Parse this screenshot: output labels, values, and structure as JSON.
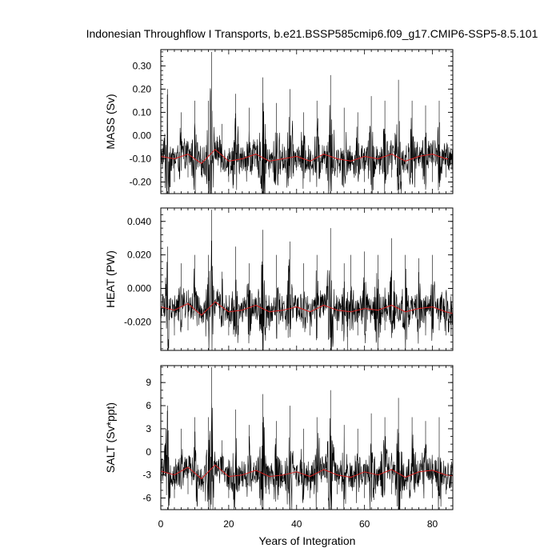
{
  "title": "Indonesian Throughflow I Transports, b.e21.BSSP585cmip6.f09_g17.CMIP6-SSP5-8.5.101",
  "xlabel": "Years of Integration",
  "colors": {
    "series": "#000000",
    "smooth": "#d62020",
    "axes": "#000000",
    "background": "#ffffff"
  },
  "chart_data": [
    {
      "type": "line",
      "panel": "mass",
      "ylabel": "MASS (Sv)",
      "xlim": [
        0,
        86
      ],
      "ylim": [
        -0.25,
        0.37
      ],
      "xticks": [
        0,
        20,
        40,
        60,
        80
      ],
      "xticklabels": [
        "0",
        "20",
        "40",
        "60",
        "80"
      ],
      "yticks": [
        -0.2,
        -0.1,
        0.0,
        0.1,
        0.2,
        0.3
      ],
      "yticklabels": [
        "-0.20",
        "-0.10",
        "0.00",
        "0.10",
        "0.20",
        "0.30"
      ],
      "series": [
        {
          "style": "monthly",
          "color": "#000000",
          "x": [
            0,
            2,
            4,
            6,
            8,
            10,
            12,
            14,
            15,
            16,
            18,
            20,
            22,
            24,
            26,
            28,
            30,
            32,
            34,
            36,
            38,
            40,
            42,
            44,
            46,
            48,
            50,
            52,
            54,
            56,
            58,
            60,
            62,
            64,
            66,
            68,
            70,
            72,
            74,
            76,
            78,
            80,
            82,
            84,
            86
          ],
          "y": [
            -0.1,
            0.2,
            -0.2,
            0.1,
            -0.18,
            0.15,
            -0.15,
            0.15,
            0.36,
            -0.1,
            0.05,
            -0.2,
            0.18,
            -0.15,
            0.12,
            -0.1,
            0.25,
            -0.18,
            0.14,
            -0.12,
            0.2,
            -0.15,
            0.1,
            -0.2,
            0.15,
            -0.1,
            0.26,
            -0.18,
            0.12,
            -0.15,
            0.1,
            -0.2,
            0.17,
            -0.1,
            0.15,
            -0.18,
            0.24,
            -0.15,
            0.15,
            -0.12,
            0.13,
            -0.2,
            0.15,
            -0.18,
            -0.2
          ]
        },
        {
          "style": "running-mean",
          "color": "#d62020",
          "x": [
            0,
            4,
            8,
            12,
            16,
            20,
            24,
            28,
            32,
            36,
            40,
            44,
            48,
            52,
            56,
            60,
            64,
            68,
            72,
            76,
            80,
            84,
            86
          ],
          "y": [
            -0.09,
            -0.1,
            -0.08,
            -0.12,
            -0.06,
            -0.11,
            -0.1,
            -0.08,
            -0.11,
            -0.1,
            -0.09,
            -0.11,
            -0.08,
            -0.1,
            -0.11,
            -0.09,
            -0.1,
            -0.08,
            -0.11,
            -0.09,
            -0.08,
            -0.1,
            -0.1
          ]
        }
      ]
    },
    {
      "type": "line",
      "panel": "heat",
      "ylabel": "HEAT (PW)",
      "xlim": [
        0,
        86
      ],
      "ylim": [
        -0.037,
        0.048
      ],
      "xticks": [
        0,
        20,
        40,
        60,
        80
      ],
      "xticklabels": [
        "0",
        "20",
        "40",
        "60",
        "80"
      ],
      "yticks": [
        -0.02,
        0.0,
        0.02,
        0.04
      ],
      "yticklabels": [
        "-0.020",
        "0.000",
        "0.020",
        "0.040"
      ],
      "series": [
        {
          "style": "monthly",
          "color": "#000000",
          "x": [
            0,
            2,
            4,
            6,
            8,
            10,
            12,
            14,
            15,
            16,
            18,
            20,
            22,
            24,
            26,
            28,
            30,
            32,
            34,
            36,
            38,
            40,
            42,
            44,
            46,
            48,
            50,
            52,
            54,
            55,
            56,
            58,
            60,
            62,
            64,
            66,
            68,
            70,
            72,
            74,
            76,
            78,
            80,
            82,
            84,
            86
          ],
          "y": [
            -0.015,
            0.025,
            -0.028,
            0.015,
            -0.025,
            0.02,
            -0.02,
            0.02,
            0.047,
            -0.015,
            0.01,
            -0.028,
            0.025,
            -0.02,
            0.015,
            -0.015,
            0.035,
            -0.025,
            0.02,
            -0.018,
            0.028,
            -0.02,
            0.015,
            -0.028,
            0.02,
            -0.015,
            0.036,
            -0.025,
            0.015,
            -0.037,
            0.02,
            -0.028,
            0.022,
            -0.015,
            0.02,
            -0.025,
            0.03,
            -0.02,
            0.02,
            -0.018,
            0.018,
            -0.028,
            0.02,
            -0.025,
            -0.028,
            -0.03
          ]
        },
        {
          "style": "running-mean",
          "color": "#d62020",
          "x": [
            0,
            4,
            8,
            12,
            16,
            20,
            24,
            28,
            32,
            36,
            40,
            44,
            48,
            52,
            56,
            60,
            64,
            68,
            72,
            76,
            80,
            84,
            86
          ],
          "y": [
            -0.011,
            -0.013,
            -0.009,
            -0.016,
            -0.008,
            -0.014,
            -0.013,
            -0.01,
            -0.014,
            -0.013,
            -0.011,
            -0.014,
            -0.01,
            -0.013,
            -0.014,
            -0.012,
            -0.013,
            -0.01,
            -0.014,
            -0.012,
            -0.011,
            -0.014,
            -0.015
          ]
        }
      ]
    },
    {
      "type": "line",
      "panel": "salt",
      "ylabel": "SALT (Sv*ppt)",
      "xlim": [
        0,
        86
      ],
      "ylim": [
        -7.5,
        11.2
      ],
      "xticks": [
        0,
        20,
        40,
        60,
        80
      ],
      "xticklabels": [
        "0",
        "20",
        "40",
        "60",
        "80"
      ],
      "yticks": [
        -6,
        -3,
        0,
        3,
        6,
        9
      ],
      "yticklabels": [
        "-6",
        "-3",
        "0",
        "3",
        "6",
        "9"
      ],
      "series": [
        {
          "style": "monthly",
          "color": "#000000",
          "x": [
            0,
            2,
            4,
            6,
            8,
            10,
            12,
            14,
            15,
            16,
            18,
            20,
            22,
            24,
            26,
            28,
            30,
            32,
            34,
            36,
            38,
            40,
            42,
            44,
            46,
            48,
            50,
            52,
            54,
            56,
            58,
            60,
            62,
            64,
            66,
            68,
            70,
            72,
            74,
            76,
            78,
            80,
            82,
            84,
            86
          ],
          "y": [
            -3,
            6,
            -6,
            3,
            -5.5,
            4.5,
            -4.5,
            4.5,
            11,
            -3,
            1.5,
            -6,
            5.5,
            -4.5,
            3.5,
            -3,
            7.5,
            -5.5,
            4,
            -3.5,
            6,
            -4.5,
            3,
            -6,
            4.5,
            -3,
            8,
            -5.5,
            3.5,
            -4.5,
            3,
            -6,
            5,
            -3,
            4.5,
            -5.5,
            7,
            -4.5,
            4.5,
            -3.5,
            4,
            -6,
            4.5,
            -5.5,
            -6
          ]
        },
        {
          "style": "running-mean",
          "color": "#d62020",
          "x": [
            0,
            4,
            8,
            12,
            16,
            20,
            24,
            28,
            32,
            36,
            40,
            44,
            48,
            52,
            56,
            60,
            64,
            68,
            72,
            76,
            80,
            84,
            86
          ],
          "y": [
            -2.5,
            -3,
            -2,
            -3.5,
            -1.7,
            -3.2,
            -3,
            -2.4,
            -3.2,
            -3,
            -2.6,
            -3.2,
            -2.3,
            -3,
            -3.3,
            -2.6,
            -3,
            -2.3,
            -3.3,
            -2.6,
            -2.4,
            -3,
            -3.1
          ]
        }
      ]
    }
  ]
}
